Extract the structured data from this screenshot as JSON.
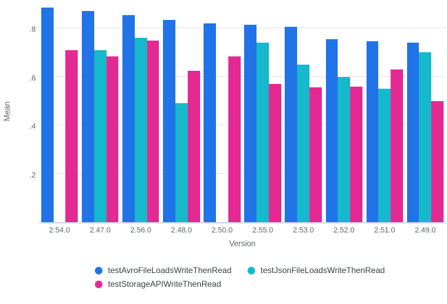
{
  "chart_data": {
    "type": "bar",
    "title": "",
    "xlabel": "Version",
    "ylabel": "Mean",
    "categories": [
      "2.54.0",
      "2.47.0",
      "2.56.0",
      "2.48.0",
      "2.50.0",
      "2.55.0",
      "2.53.0",
      "2.52.0",
      "2.51.0",
      "2.49.0"
    ],
    "series": [
      {
        "name": "testAvroFileLoadsWriteThenRead",
        "color": "#2173E8",
        "values": [
          0.885,
          0.87,
          0.855,
          0.835,
          0.82,
          0.815,
          0.805,
          0.755,
          0.745,
          0.74
        ]
      },
      {
        "name": "testJsonFileLoadsWriteThenRead",
        "color": "#16B8CB",
        "values": [
          null,
          0.71,
          0.76,
          0.49,
          null,
          0.74,
          0.65,
          0.6,
          0.55,
          0.7
        ]
      },
      {
        "name": "testStorageAPIWriteThenRead",
        "color": "#E42A92",
        "values": [
          0.71,
          0.685,
          0.75,
          0.625,
          0.685,
          0.57,
          0.555,
          0.56,
          0.63,
          0.5
        ]
      }
    ],
    "yticks": [
      {
        "value": 0.2,
        "label": ".2"
      },
      {
        "value": 0.4,
        "label": ".4"
      },
      {
        "value": 0.6,
        "label": ".6"
      },
      {
        "value": 0.8,
        "label": ".8"
      }
    ],
    "ylim": [
      0,
      0.922
    ],
    "grid": true,
    "legend_position": "bottom"
  },
  "styles": {
    "background": "#FFFFFF",
    "grid_color": "#E5E5E5",
    "axis_line_color": "#D3D9EE",
    "tick_text_color": "#5F6368",
    "legend_text_color": "#3C4043"
  }
}
